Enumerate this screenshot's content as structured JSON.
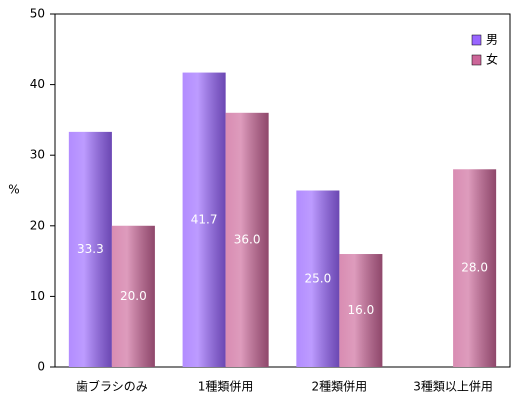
{
  "chart_data": {
    "type": "bar",
    "y_label": "%",
    "categories": [
      "歯ブラシのみ",
      "1種類併用",
      "2種類併用",
      "3種類以上併用"
    ],
    "series": [
      {
        "name": "男",
        "color": "#9966ff",
        "values": [
          33.3,
          41.7,
          25.0,
          null
        ],
        "value_labels": [
          "33.3",
          "41.7",
          "25.0",
          null
        ]
      },
      {
        "name": "女",
        "color": "#cc6699",
        "values": [
          20.0,
          36.0,
          16.0,
          28.0
        ],
        "value_labels": [
          "20.0",
          "36.0",
          "16.0",
          "28.0"
        ]
      }
    ],
    "ylim": [
      0,
      50
    ],
    "yticks": [
      0,
      10,
      20,
      30,
      40,
      50
    ],
    "grid": false,
    "legend": "upper right"
  }
}
